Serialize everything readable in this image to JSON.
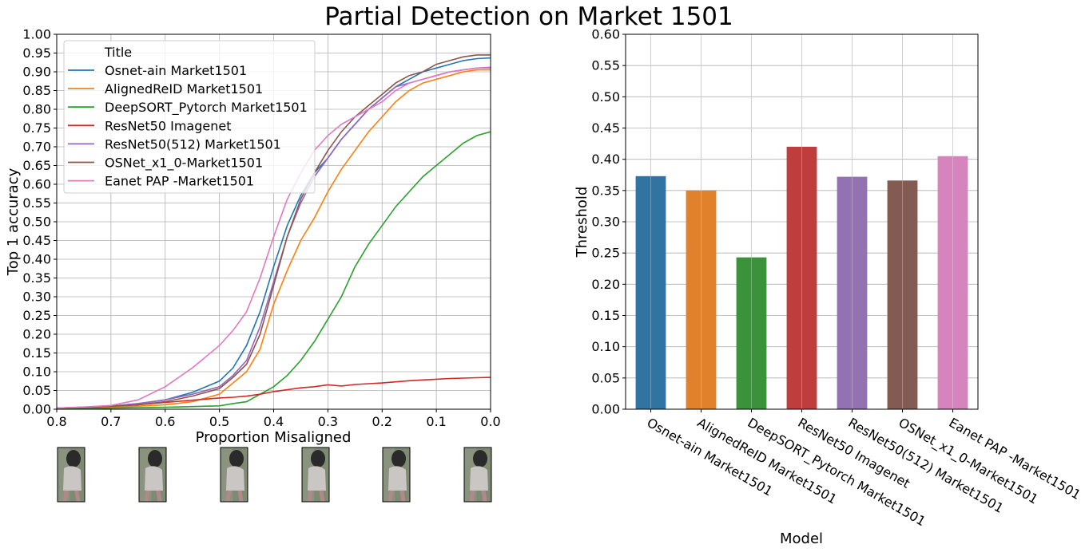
{
  "suptitle": "Partial Detection on Market 1501",
  "colors": {
    "blue": "#1f77b4",
    "orange": "#ff7f0e",
    "green": "#2ca02c",
    "red": "#d62728",
    "purple": "#9467bd",
    "brown": "#8c564b",
    "pink": "#e377c2"
  },
  "chart_data": [
    {
      "type": "line",
      "xlabel": "Proportion Misaligned",
      "ylabel": "Top 1 accuracy",
      "xlim": [
        0.8,
        0.0
      ],
      "ylim": [
        0.0,
        1.0
      ],
      "x_inverted": true,
      "grid": true,
      "xticks": [
        "0.8",
        "0.7",
        "0.6",
        "0.5",
        "0.4",
        "0.3",
        "0.2",
        "0.1",
        "0.0"
      ],
      "yticks": [
        "0.00",
        "0.05",
        "0.10",
        "0.15",
        "0.20",
        "0.25",
        "0.30",
        "0.35",
        "0.40",
        "0.45",
        "0.50",
        "0.55",
        "0.60",
        "0.65",
        "0.70",
        "0.75",
        "0.80",
        "0.85",
        "0.90",
        "0.95",
        "1.00"
      ],
      "legend": {
        "title": "Title",
        "placement": "upper left"
      },
      "x": [
        0.8,
        0.75,
        0.7,
        0.65,
        0.6,
        0.55,
        0.5,
        0.475,
        0.45,
        0.425,
        0.4,
        0.375,
        0.35,
        0.325,
        0.3,
        0.275,
        0.25,
        0.225,
        0.2,
        0.175,
        0.15,
        0.125,
        0.1,
        0.075,
        0.05,
        0.025,
        0.0
      ],
      "series": [
        {
          "name": "Osnet-ain Market1501",
          "color": "blue",
          "values": [
            0.003,
            0.005,
            0.008,
            0.015,
            0.025,
            0.045,
            0.075,
            0.11,
            0.17,
            0.26,
            0.38,
            0.49,
            0.57,
            0.63,
            0.67,
            0.72,
            0.76,
            0.8,
            0.83,
            0.86,
            0.88,
            0.9,
            0.91,
            0.92,
            0.93,
            0.935,
            0.937
          ]
        },
        {
          "name": "AlignedReID Market1501",
          "color": "orange",
          "values": [
            0.002,
            0.003,
            0.005,
            0.008,
            0.012,
            0.02,
            0.04,
            0.07,
            0.1,
            0.16,
            0.28,
            0.37,
            0.45,
            0.51,
            0.58,
            0.64,
            0.69,
            0.74,
            0.78,
            0.82,
            0.85,
            0.87,
            0.88,
            0.89,
            0.9,
            0.905,
            0.905
          ]
        },
        {
          "name": "DeepSORT_Pytorch Market1501",
          "color": "green",
          "values": [
            0.001,
            0.002,
            0.003,
            0.004,
            0.005,
            0.007,
            0.009,
            0.015,
            0.02,
            0.04,
            0.06,
            0.09,
            0.13,
            0.18,
            0.24,
            0.3,
            0.38,
            0.44,
            0.49,
            0.54,
            0.58,
            0.62,
            0.65,
            0.68,
            0.71,
            0.73,
            0.74
          ]
        },
        {
          "name": "ResNet50 Imagenet",
          "color": "red",
          "values": [
            0.003,
            0.005,
            0.008,
            0.012,
            0.018,
            0.024,
            0.03,
            0.032,
            0.035,
            0.04,
            0.047,
            0.052,
            0.057,
            0.06,
            0.065,
            0.062,
            0.066,
            0.068,
            0.07,
            0.073,
            0.076,
            0.078,
            0.08,
            0.082,
            0.083,
            0.084,
            0.085
          ]
        },
        {
          "name": "ResNet50(512) Market1501",
          "color": "purple",
          "values": [
            0.003,
            0.005,
            0.008,
            0.015,
            0.025,
            0.04,
            0.06,
            0.09,
            0.13,
            0.22,
            0.34,
            0.46,
            0.55,
            0.62,
            0.67,
            0.72,
            0.76,
            0.8,
            0.83,
            0.86,
            0.87,
            0.88,
            0.89,
            0.9,
            0.905,
            0.91,
            0.912
          ]
        },
        {
          "name": "OSNet_x1_0-Market1501",
          "color": "brown",
          "values": [
            0.003,
            0.005,
            0.008,
            0.012,
            0.02,
            0.035,
            0.055,
            0.085,
            0.12,
            0.2,
            0.33,
            0.46,
            0.56,
            0.63,
            0.69,
            0.74,
            0.78,
            0.81,
            0.84,
            0.87,
            0.89,
            0.9,
            0.92,
            0.93,
            0.94,
            0.945,
            0.945
          ]
        },
        {
          "name": "Eanet PAP -Market1501",
          "color": "pink",
          "values": [
            0.003,
            0.006,
            0.01,
            0.025,
            0.06,
            0.11,
            0.17,
            0.21,
            0.26,
            0.35,
            0.46,
            0.56,
            0.63,
            0.69,
            0.73,
            0.76,
            0.78,
            0.8,
            0.82,
            0.85,
            0.87,
            0.88,
            0.89,
            0.9,
            0.905,
            0.91,
            0.91
          ]
        }
      ]
    },
    {
      "type": "bar",
      "xlabel": "Model",
      "ylabel": "Threshold",
      "ylim": [
        0.0,
        0.6
      ],
      "grid": true,
      "yticks": [
        "0.00",
        "0.05",
        "0.10",
        "0.15",
        "0.20",
        "0.25",
        "0.30",
        "0.35",
        "0.40",
        "0.45",
        "0.50",
        "0.55",
        "0.60"
      ],
      "categories": [
        "Osnet-ain Market1501",
        "AlignedReID Market1501",
        "DeepSORT_Pytorch Market1501",
        "ResNet50 Imagenet",
        "ResNet50(512) Market1501",
        "OSNet_x1_0-Market1501",
        "Eanet PAP -Market1501"
      ],
      "values": [
        0.373,
        0.35,
        0.243,
        0.42,
        0.372,
        0.366,
        0.405
      ],
      "bar_colors": [
        "#3274a1",
        "#e1812c",
        "#3a923a",
        "#c03d3e",
        "#9372b2",
        "#845b53",
        "#d684bd"
      ]
    }
  ],
  "thumbnails": [
    {
      "icon": "person-crop-thumbnail"
    },
    {
      "icon": "person-crop-thumbnail"
    },
    {
      "icon": "person-crop-thumbnail"
    },
    {
      "icon": "person-crop-thumbnail"
    },
    {
      "icon": "person-crop-thumbnail"
    },
    {
      "icon": "person-crop-thumbnail"
    }
  ]
}
